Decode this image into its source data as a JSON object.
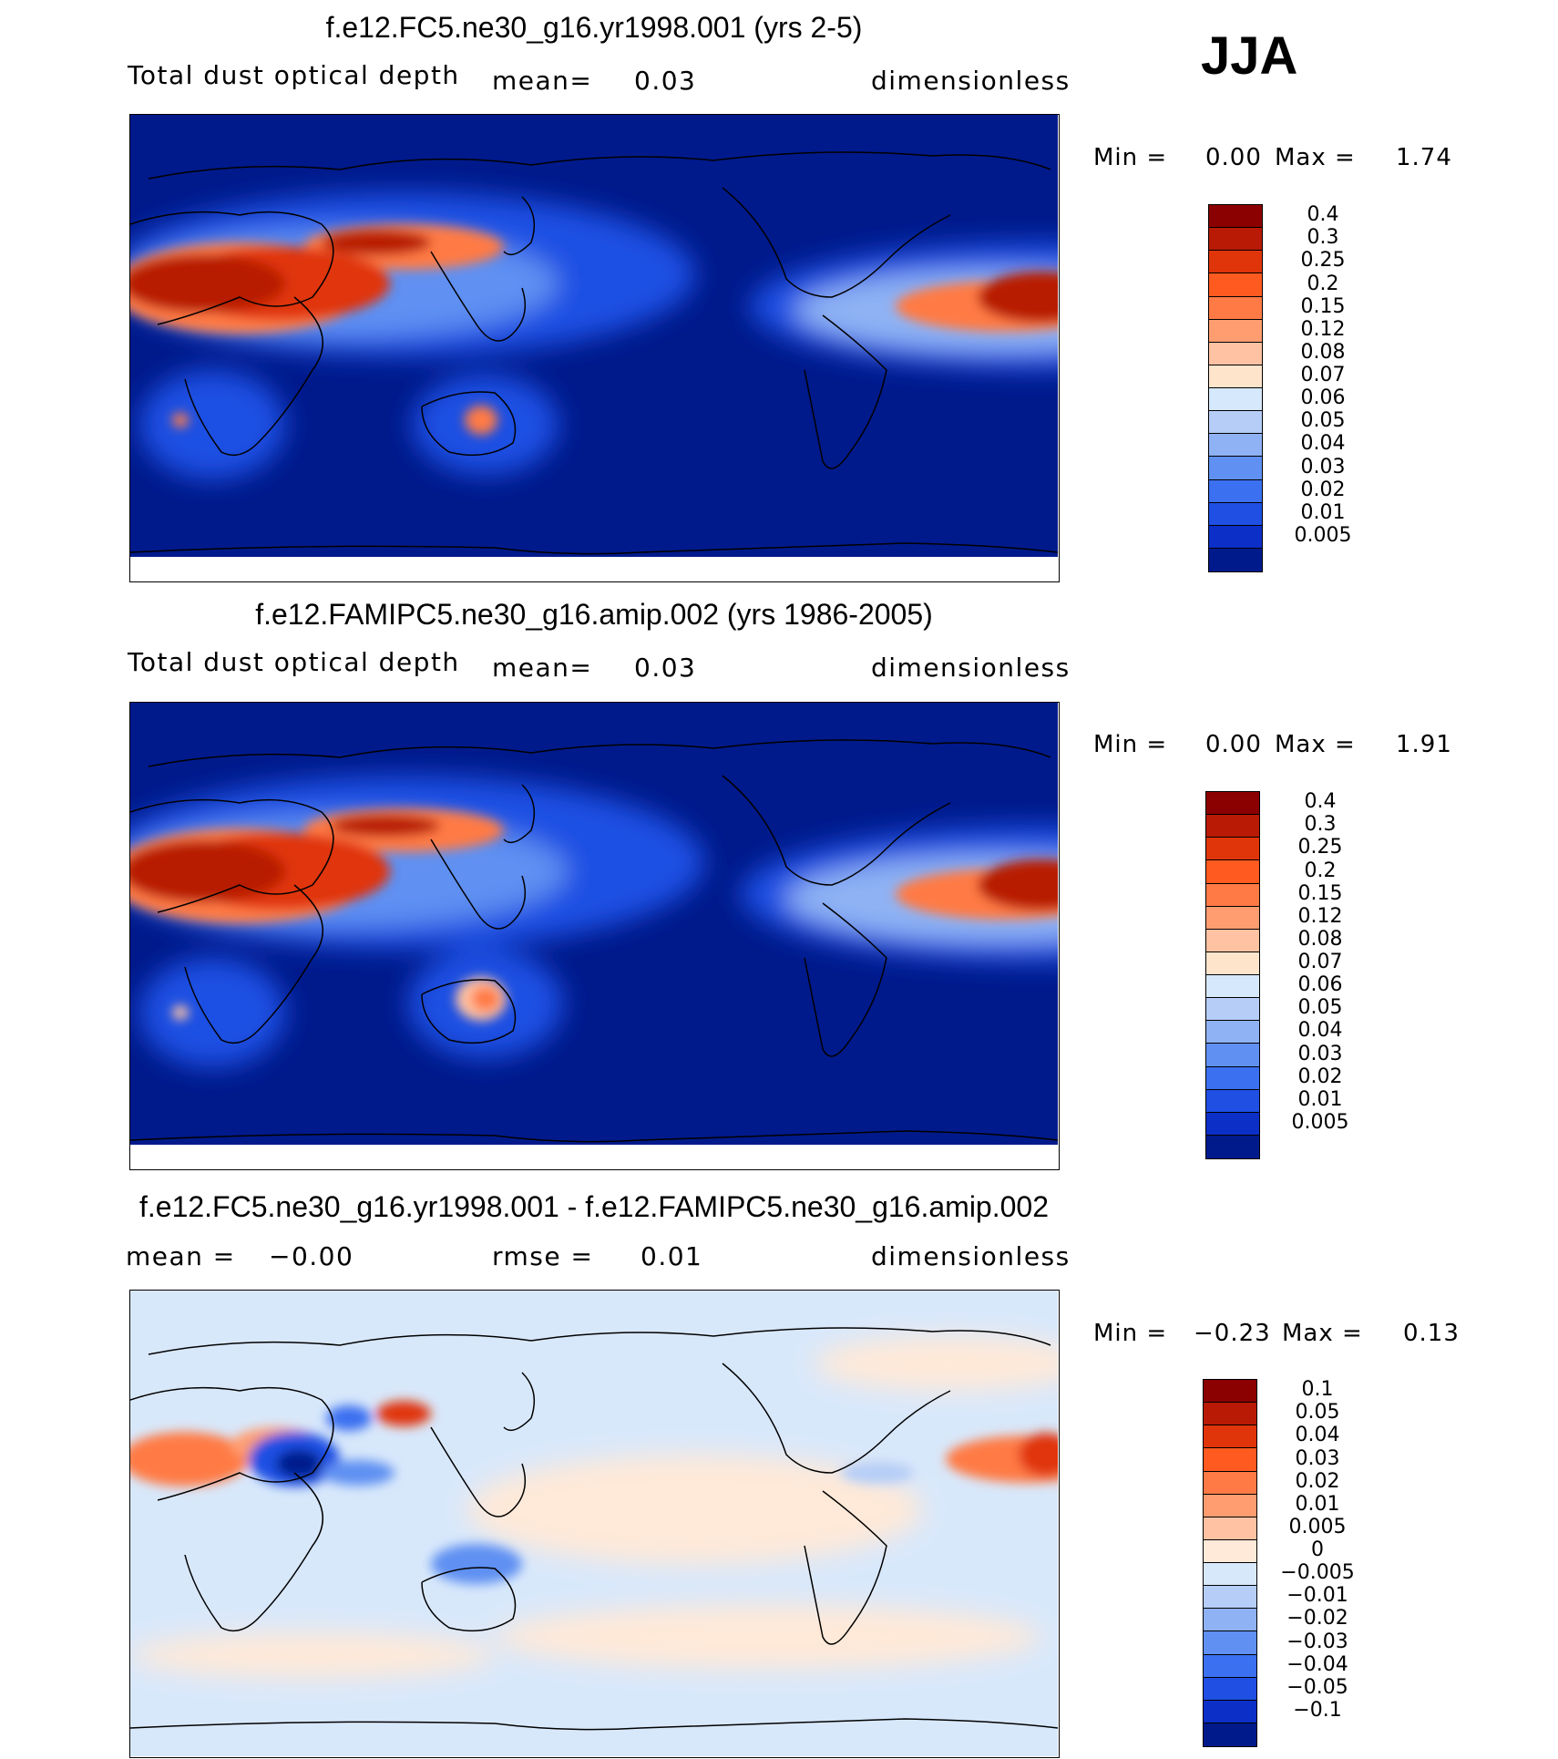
{
  "season": "JJA",
  "panels": [
    {
      "id": "p1",
      "title": "f.e12.FC5.ne30_g16.yr1998.001 (yrs 2-5)",
      "left_label": "Total dust optical depth",
      "mid_label": "mean=",
      "mid_value": "0.03",
      "unit": "dimensionless",
      "min_label": "Min =",
      "min_value": "0.00",
      "max_label": "Max =",
      "max_value": "1.74",
      "levels": [
        "0.4",
        "0.3",
        "0.25",
        "0.2",
        "0.15",
        "0.12",
        "0.08",
        "0.07",
        "0.06",
        "0.05",
        "0.04",
        "0.03",
        "0.02",
        "0.01",
        "0.005"
      ],
      "colors": [
        "#8b0000",
        "#b81a05",
        "#e0350a",
        "#ff5a1f",
        "#ff7a45",
        "#ff9d70",
        "#ffc2a2",
        "#ffe4cc",
        "#d6e8fb",
        "#b5cdf7",
        "#8fb2f4",
        "#5f90f2",
        "#3b70f0",
        "#1f4fe3",
        "#0c2fc8",
        "#001a8c"
      ],
      "map": "abs"
    },
    {
      "id": "p2",
      "title": "f.e12.FAMIPC5.ne30_g16.amip.002 (yrs 1986-2005)",
      "left_label": "Total dust optical depth",
      "mid_label": "mean=",
      "mid_value": "0.03",
      "unit": "dimensionless",
      "min_label": "Min =",
      "min_value": "0.00",
      "max_label": "Max =",
      "max_value": "1.91",
      "levels": [
        "0.4",
        "0.3",
        "0.25",
        "0.2",
        "0.15",
        "0.12",
        "0.08",
        "0.07",
        "0.06",
        "0.05",
        "0.04",
        "0.03",
        "0.02",
        "0.01",
        "0.005"
      ],
      "colors": [
        "#8b0000",
        "#b81a05",
        "#e0350a",
        "#ff5a1f",
        "#ff7a45",
        "#ff9d70",
        "#ffc2a2",
        "#ffe4cc",
        "#d6e8fb",
        "#b5cdf7",
        "#8fb2f4",
        "#5f90f2",
        "#3b70f0",
        "#1f4fe3",
        "#0c2fc8",
        "#001a8c"
      ],
      "map": "abs"
    },
    {
      "id": "p3",
      "title": "f.e12.FC5.ne30_g16.yr1998.001 - f.e12.FAMIPC5.ne30_g16.amip.002",
      "left_label": "mean =",
      "left_value": "−0.00",
      "mid_label": "rmse =",
      "mid_value": "0.01",
      "unit": "dimensionless",
      "min_label": "Min =",
      "min_value": "−0.23",
      "max_label": "Max =",
      "max_value": "0.13",
      "levels": [
        "0.1",
        "0.05",
        "0.04",
        "0.03",
        "0.02",
        "0.01",
        "0.005",
        "0",
        "−0.005",
        "−0.01",
        "−0.02",
        "−0.03",
        "−0.04",
        "−0.05",
        "−0.1"
      ],
      "colors": [
        "#8b0000",
        "#b81a05",
        "#e0350a",
        "#ff5a1f",
        "#ff7a45",
        "#ff9d70",
        "#ffc2a2",
        "#ffe9d8",
        "#d8e8fb",
        "#b5cdf7",
        "#8fb2f4",
        "#5f90f2",
        "#3b70f0",
        "#1f4fe3",
        "#0c2fc8",
        "#001a8c"
      ],
      "map": "diff"
    }
  ]
}
